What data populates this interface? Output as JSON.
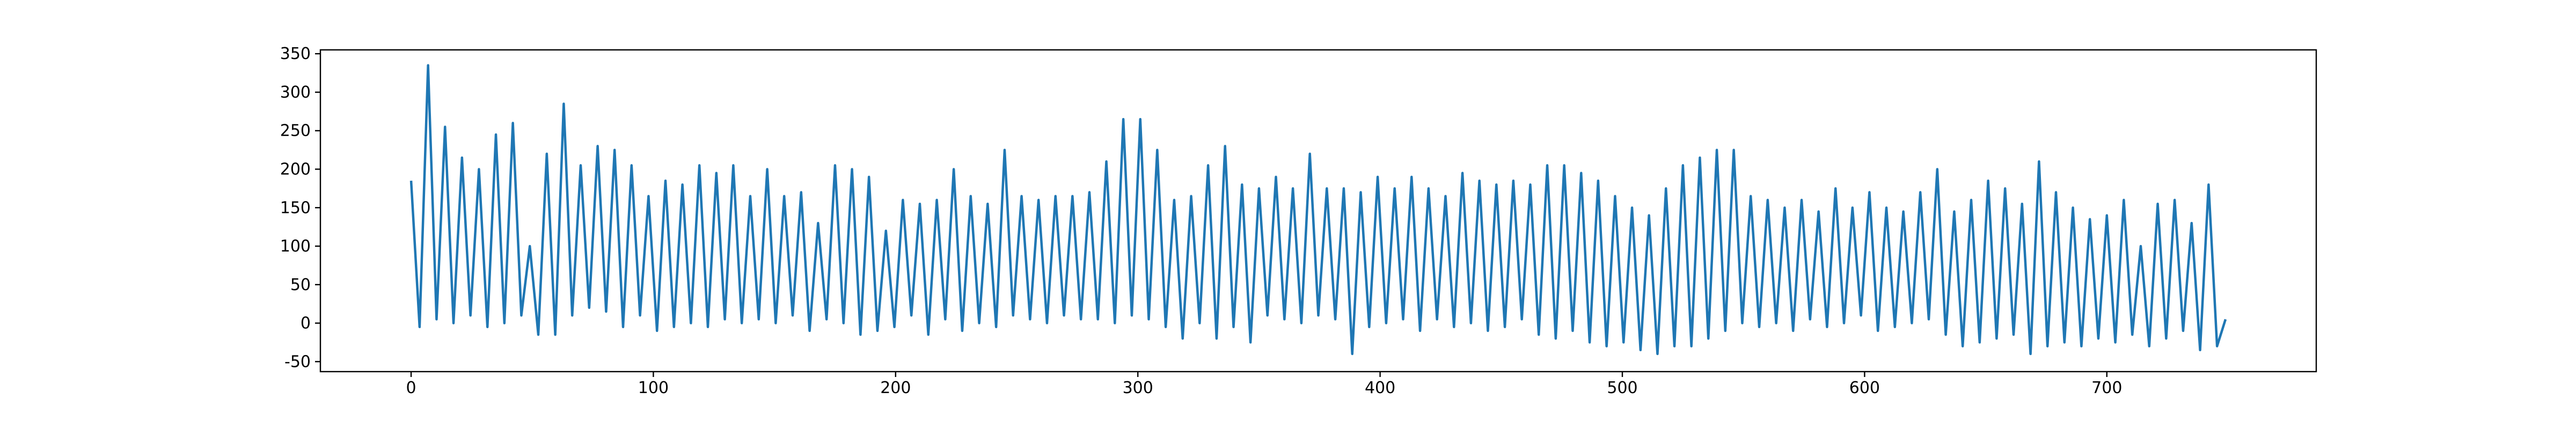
{
  "chart_data": {
    "type": "line",
    "color": "#1f77b4",
    "xlim": [
      -37.45,
      786.45
    ],
    "ylim": [
      -63,
      355
    ],
    "xticks": [
      0,
      100,
      200,
      300,
      400,
      500,
      600,
      700
    ],
    "yticks": [
      -50,
      0,
      50,
      100,
      150,
      200,
      250,
      300,
      350
    ],
    "x": [
      0,
      3.5,
      7,
      10.5,
      14,
      17.5,
      21,
      24.5,
      28,
      31.5,
      35,
      38.5,
      42,
      45.5,
      49,
      52.5,
      56,
      59.5,
      63,
      66.5,
      70,
      73.5,
      77,
      80.5,
      84,
      87.5,
      91,
      94.5,
      98,
      101.5,
      105,
      108.5,
      112,
      115.5,
      119,
      122.5,
      126,
      129.5,
      133,
      136.5,
      140,
      143.5,
      147,
      150.5,
      154,
      157.5,
      161,
      164.5,
      168,
      171.5,
      175,
      178.5,
      182,
      185.5,
      189,
      192.5,
      196,
      199.5,
      203,
      206.5,
      210,
      213.5,
      217,
      220.5,
      224,
      227.5,
      231,
      234.5,
      238,
      241.5,
      245,
      248.5,
      252,
      255.5,
      259,
      262.5,
      266,
      269.5,
      273,
      276.5,
      280,
      283.5,
      287,
      290.5,
      294,
      297.5,
      301,
      304.5,
      308,
      311.5,
      315,
      318.5,
      322,
      325.5,
      329,
      332.5,
      336,
      339.5,
      343,
      346.5,
      350,
      353.5,
      357,
      360.5,
      364,
      367.5,
      371,
      374.5,
      378,
      381.5,
      385,
      388.5,
      392,
      395.5,
      399,
      402.5,
      406,
      409.5,
      413,
      416.5,
      420,
      423.5,
      427,
      430.5,
      434,
      437.5,
      441,
      444.5,
      448,
      451.5,
      455,
      458.5,
      462,
      465.5,
      469,
      472.5,
      476,
      479.5,
      483,
      486.5,
      490,
      493.5,
      497,
      500.5,
      504,
      507.5,
      511,
      514.5,
      518,
      521.5,
      525,
      528.5,
      532,
      535.5,
      539,
      542.5,
      546,
      549.5,
      553,
      556.5,
      560,
      563.5,
      567,
      570.5,
      574,
      577.5,
      581,
      584.5,
      588,
      591.5,
      595,
      598.5,
      602,
      605.5,
      609,
      612.5,
      616,
      619.5,
      623,
      626.5,
      630,
      633.5,
      637,
      640.5,
      644,
      647.5,
      651,
      654.5,
      658,
      661.5,
      665,
      668.5,
      672,
      675.5,
      679,
      682.5,
      686,
      689.5,
      693,
      696.5,
      700,
      703.5,
      707,
      710.5,
      714,
      717.5,
      721,
      724.5,
      728,
      731.5,
      735,
      738.5,
      742,
      745.5,
      749
    ],
    "values": [
      185,
      -5,
      335,
      5,
      255,
      0,
      215,
      10,
      200,
      -5,
      245,
      0,
      260,
      10,
      100,
      -15,
      220,
      -15,
      285,
      10,
      205,
      20,
      230,
      15,
      225,
      -5,
      205,
      10,
      165,
      -10,
      185,
      -5,
      180,
      0,
      205,
      -5,
      195,
      5,
      205,
      0,
      165,
      5,
      200,
      0,
      165,
      10,
      170,
      -10,
      130,
      5,
      205,
      0,
      200,
      -15,
      190,
      -10,
      120,
      -5,
      160,
      10,
      155,
      -15,
      160,
      5,
      200,
      -10,
      165,
      0,
      155,
      -5,
      225,
      10,
      165,
      5,
      160,
      0,
      165,
      10,
      165,
      5,
      170,
      5,
      210,
      0,
      265,
      10,
      265,
      5,
      225,
      -5,
      160,
      -20,
      165,
      0,
      205,
      -20,
      230,
      -5,
      180,
      -25,
      175,
      10,
      190,
      5,
      175,
      0,
      220,
      10,
      175,
      5,
      175,
      -40,
      170,
      -5,
      190,
      0,
      175,
      5,
      190,
      -10,
      175,
      5,
      165,
      -5,
      195,
      0,
      185,
      -10,
      180,
      -5,
      185,
      5,
      180,
      -15,
      205,
      -20,
      205,
      -10,
      195,
      -25,
      185,
      -30,
      165,
      -25,
      150,
      -35,
      140,
      -40,
      175,
      -30,
      205,
      -30,
      215,
      -20,
      225,
      -10,
      225,
      0,
      165,
      -5,
      160,
      0,
      150,
      -10,
      160,
      5,
      145,
      -5,
      175,
      0,
      150,
      10,
      170,
      -10,
      150,
      -5,
      145,
      0,
      170,
      5,
      200,
      -15,
      145,
      -30,
      160,
      -25,
      185,
      -20,
      175,
      -15,
      155,
      -40,
      210,
      -30,
      170,
      -25,
      150,
      -30,
      135,
      -20,
      140,
      -25,
      160,
      -15,
      100,
      -30,
      155,
      -20,
      160,
      -10,
      130,
      -35,
      180,
      -30,
      5
    ]
  }
}
